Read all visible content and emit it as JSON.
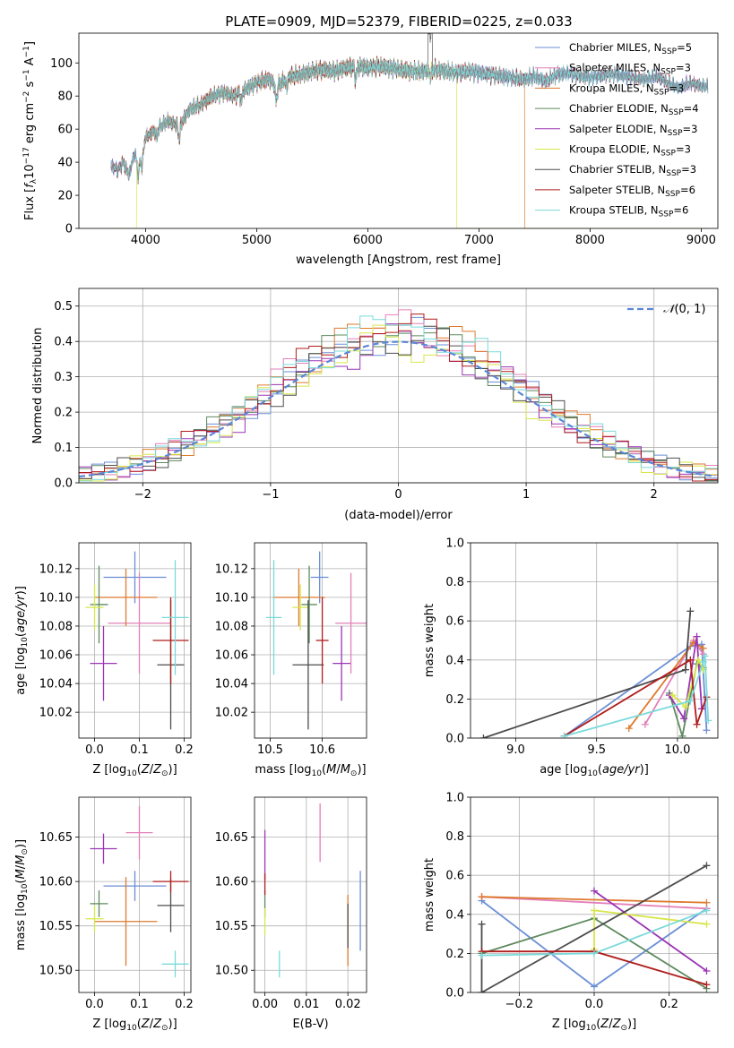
{
  "figure": {
    "title": "PLATE=0909, MJD=52379, FIBERID=0225, z=0.033"
  },
  "colors": {
    "Chabrier MILES": "#6b8fd6",
    "Salpeter MILES": "#e37fb8",
    "Kroupa MILES": "#de7a2e",
    "Chabrier ELODIE": "#5e8a5e",
    "Salpeter ELODIE": "#9a35b5",
    "Kroupa ELODIE": "#d7e64a",
    "Chabrier STELIB": "#4d4d4d",
    "Salpeter STELIB": "#b01c1c",
    "Kroupa STELIB": "#7adada"
  },
  "chart_data": [
    {
      "id": "spectrum",
      "type": "line",
      "xlabel": "wavelength [Angstrom, rest frame]",
      "ylabel": "Flux [f_λ10^-17 erg cm^-2 s^-1 A^-1]",
      "xlim": [
        3400,
        9150
      ],
      "ylim": [
        0,
        118
      ],
      "xticks": [
        4000,
        5000,
        6000,
        7000,
        8000,
        9000
      ],
      "yticks": [
        0,
        20,
        40,
        60,
        80,
        100
      ],
      "grid": false,
      "legend_position": "upper-right",
      "legend": [
        {
          "model": "Chabrier MILES",
          "label": "Chabrier MILES, N",
          "sub": "SSP",
          "suffix": "=5"
        },
        {
          "model": "Salpeter MILES",
          "label": "Salpeter MILES, N",
          "sub": "SSP",
          "suffix": "=3"
        },
        {
          "model": "Kroupa MILES",
          "label": "Kroupa MILES, N",
          "sub": "SSP",
          "suffix": "=3"
        },
        {
          "model": "Chabrier ELODIE",
          "label": "Chabrier ELODIE, N",
          "sub": "SSP",
          "suffix": "=4"
        },
        {
          "model": "Salpeter ELODIE",
          "label": "Salpeter ELODIE, N",
          "sub": "SSP",
          "suffix": "=3"
        },
        {
          "model": "Kroupa ELODIE",
          "label": "Kroupa ELODIE, N",
          "sub": "SSP",
          "suffix": "=3"
        },
        {
          "model": "Chabrier STELIB",
          "label": "Chabrier STELIB, N",
          "sub": "SSP",
          "suffix": "=3"
        },
        {
          "model": "Salpeter STELIB",
          "label": "Salpeter STELIB, N",
          "sub": "SSP",
          "suffix": "=6"
        },
        {
          "model": "Kroupa STELIB",
          "label": "Kroupa STELIB, N",
          "sub": "SSP",
          "suffix": "=6"
        }
      ],
      "spectrum_anchors": {
        "wavelength": [
          3690,
          3750,
          3800,
          3850,
          3900,
          3950,
          4000,
          4100,
          4200,
          4300,
          4400,
          4500,
          4600,
          4700,
          4800,
          4900,
          5000,
          5100,
          5200,
          5300,
          5400,
          5500,
          5600,
          5700,
          5800,
          5900,
          6000,
          6100,
          6200,
          6300,
          6400,
          6500,
          6600,
          6700,
          6800,
          6900,
          7000,
          7100,
          7200,
          7300,
          7400,
          7500,
          7600,
          7700,
          7800,
          7900,
          8000,
          8100,
          8200,
          8300,
          8400,
          8500,
          8600,
          8700,
          8800,
          8900,
          9000
        ],
        "flux": [
          38,
          35,
          40,
          32,
          45,
          44,
          55,
          60,
          65,
          62,
          72,
          75,
          80,
          82,
          80,
          84,
          88,
          90,
          87,
          92,
          93,
          95,
          96,
          95,
          97,
          98,
          97,
          98,
          97,
          96,
          95,
          95,
          96,
          95,
          94,
          95,
          94,
          93,
          92,
          91,
          90,
          92,
          89,
          93,
          94,
          92,
          91,
          92,
          93,
          92,
          91,
          90,
          92,
          88,
          85,
          88,
          86
        ]
      },
      "model_cutoffs": [
        {
          "model": "Kroupa ELODIE",
          "from": 3920,
          "to": 6800,
          "note": "drops to zero outside range"
        },
        {
          "model": "Kroupa MILES",
          "from": 3540,
          "to": 7410
        }
      ]
    },
    {
      "id": "residuals",
      "type": "step",
      "xlabel": "(data-model)/error",
      "ylabel": "Normed distribution",
      "xlim": [
        -2.5,
        2.5
      ],
      "ylim": [
        0,
        0.55
      ],
      "xticks": [
        -2,
        -1,
        0,
        1,
        2
      ],
      "yticks": [
        0.0,
        0.1,
        0.2,
        0.3,
        0.4,
        0.5
      ],
      "grid": true,
      "legend_position": "upper-right",
      "reference_curve": {
        "label": "N(0,1)",
        "mean": 0,
        "sigma": 1,
        "color": "#5b86d6"
      },
      "bin_width": 0.1
    },
    {
      "id": "age_vs_Z",
      "type": "errorbar",
      "xlabel": "Z [log10(Z/Z⊙)]",
      "ylabel": "age [log10(age/yr)]",
      "xlim": [
        -0.035,
        0.215
      ],
      "ylim": [
        10.002,
        10.138
      ],
      "xticks": [
        0.0,
        0.1,
        0.2
      ],
      "yticks": [
        10.02,
        10.04,
        10.06,
        10.08,
        10.1,
        10.12
      ],
      "grid": true,
      "points": [
        {
          "model": "Chabrier MILES",
          "x": 0.09,
          "xerr": 0.07,
          "y": 10.114,
          "yerr": 0.018
        },
        {
          "model": "Salpeter MILES",
          "x": 0.1,
          "xerr": 0.07,
          "y": 10.082,
          "yerr": 0.035
        },
        {
          "model": "Kroupa MILES",
          "x": 0.07,
          "xerr": 0.07,
          "y": 10.1,
          "yerr": 0.02
        },
        {
          "model": "Chabrier ELODIE",
          "x": 0.01,
          "xerr": 0.02,
          "y": 10.095,
          "yerr": 0.027
        },
        {
          "model": "Salpeter ELODIE",
          "x": 0.02,
          "xerr": 0.03,
          "y": 10.054,
          "yerr": 0.026
        },
        {
          "model": "Kroupa ELODIE",
          "x": 0.0,
          "xerr": 0.02,
          "y": 10.093,
          "yerr": 0.016
        },
        {
          "model": "Chabrier STELIB",
          "x": 0.17,
          "xerr": 0.03,
          "y": 10.053,
          "yerr": 0.045
        },
        {
          "model": "Salpeter STELIB",
          "x": 0.17,
          "xerr": 0.04,
          "y": 10.07,
          "yerr": 0.03
        },
        {
          "model": "Kroupa STELIB",
          "x": 0.18,
          "xerr": 0.03,
          "y": 10.086,
          "yerr": 0.04
        }
      ]
    },
    {
      "id": "age_vs_mass",
      "type": "errorbar",
      "xlabel": "mass [log10(M/M⊙)]",
      "ylabel": "",
      "xlim": [
        10.47,
        10.685
      ],
      "ylim": [
        10.002,
        10.138
      ],
      "xticks": [
        10.5,
        10.6
      ],
      "yticks": [
        10.02,
        10.04,
        10.06,
        10.08,
        10.1,
        10.12
      ],
      "grid": true,
      "points": [
        {
          "model": "Chabrier MILES",
          "x": 10.595,
          "xerr": 0.017,
          "y": 10.114,
          "yerr": 0.018
        },
        {
          "model": "Salpeter MILES",
          "x": 10.655,
          "xerr": 0.03,
          "y": 10.082,
          "yerr": 0.035
        },
        {
          "model": "Kroupa MILES",
          "x": 10.555,
          "xerr": 0.05,
          "y": 10.1,
          "yerr": 0.02
        },
        {
          "model": "Chabrier ELODIE",
          "x": 10.575,
          "xerr": 0.015,
          "y": 10.095,
          "yerr": 0.027
        },
        {
          "model": "Salpeter ELODIE",
          "x": 10.637,
          "xerr": 0.017,
          "y": 10.054,
          "yerr": 0.026
        },
        {
          "model": "Kroupa ELODIE",
          "x": 10.558,
          "xerr": 0.015,
          "y": 10.093,
          "yerr": 0.016
        },
        {
          "model": "Chabrier STELIB",
          "x": 10.573,
          "xerr": 0.03,
          "y": 10.053,
          "yerr": 0.045
        },
        {
          "model": "Salpeter STELIB",
          "x": 10.6,
          "xerr": 0.012,
          "y": 10.07,
          "yerr": 0.03
        },
        {
          "model": "Kroupa STELIB",
          "x": 10.507,
          "xerr": 0.015,
          "y": 10.086,
          "yerr": 0.04
        }
      ]
    },
    {
      "id": "massweight_vs_age",
      "type": "line",
      "xlabel": "age  [log10(age/yr)]",
      "ylabel": "mass weight",
      "xlim": [
        8.72,
        10.25
      ],
      "ylim": [
        0.0,
        1.0
      ],
      "xticks": [
        9.0,
        9.5,
        10.0
      ],
      "yticks": [
        0.0,
        0.2,
        0.4,
        0.6,
        0.8,
        1.0
      ],
      "grid": true,
      "series": [
        {
          "model": "Chabrier MILES",
          "x": [
            9.3,
            10.08,
            10.15,
            10.18
          ],
          "y": [
            0.01,
            0.47,
            0.48,
            0.04
          ]
        },
        {
          "model": "Salpeter MILES",
          "x": [
            9.8,
            10.1,
            10.16
          ],
          "y": [
            0.07,
            0.5,
            0.43
          ]
        },
        {
          "model": "Kroupa MILES",
          "x": [
            9.7,
            10.1,
            10.16
          ],
          "y": [
            0.05,
            0.49,
            0.46
          ]
        },
        {
          "model": "Chabrier ELODIE",
          "x": [
            9.95,
            10.03,
            10.12,
            10.16
          ],
          "y": [
            0.23,
            0.01,
            0.38,
            0.36
          ]
        },
        {
          "model": "Salpeter ELODIE",
          "x": [
            9.95,
            10.04,
            10.12,
            10.15
          ],
          "y": [
            0.22,
            0.1,
            0.52,
            0.15
          ]
        },
        {
          "model": "Kroupa ELODIE",
          "x": [
            9.97,
            10.05,
            10.13,
            10.16
          ],
          "y": [
            0.22,
            0.16,
            0.4,
            0.35
          ]
        },
        {
          "model": "Chabrier STELIB",
          "x": [
            8.8,
            10.05,
            10.08
          ],
          "y": [
            0.0,
            0.35,
            0.65
          ]
        },
        {
          "model": "Salpeter STELIB",
          "x": [
            9.3,
            10.08,
            10.12,
            10.18
          ],
          "y": [
            0.01,
            0.4,
            0.07,
            0.21
          ]
        },
        {
          "model": "Kroupa STELIB",
          "x": [
            9.3,
            10.08,
            10.16,
            10.17,
            10.19
          ],
          "y": [
            0.01,
            0.19,
            0.39,
            0.42,
            0.09
          ]
        }
      ]
    },
    {
      "id": "mass_vs_Z",
      "type": "errorbar",
      "xlabel": "Z [log10(Z/Z⊙)]",
      "ylabel": "mass [log10(M/M⊙)]",
      "xlim": [
        -0.035,
        0.215
      ],
      "ylim": [
        10.475,
        10.695
      ],
      "xticks": [
        0.0,
        0.1,
        0.2
      ],
      "yticks": [
        10.5,
        10.55,
        10.6,
        10.65
      ],
      "grid": true,
      "points": [
        {
          "model": "Chabrier MILES",
          "x": 0.09,
          "xerr": 0.07,
          "y": 10.595,
          "yerr": 0.017
        },
        {
          "model": "Salpeter MILES",
          "x": 0.1,
          "xerr": 0.03,
          "y": 10.655,
          "yerr": 0.03
        },
        {
          "model": "Kroupa MILES",
          "x": 0.07,
          "xerr": 0.07,
          "y": 10.555,
          "yerr": 0.05
        },
        {
          "model": "Chabrier ELODIE",
          "x": 0.01,
          "xerr": 0.02,
          "y": 10.575,
          "yerr": 0.015
        },
        {
          "model": "Salpeter ELODIE",
          "x": 0.02,
          "xerr": 0.03,
          "y": 10.637,
          "yerr": 0.017
        },
        {
          "model": "Kroupa ELODIE",
          "x": 0.0,
          "xerr": 0.02,
          "y": 10.558,
          "yerr": 0.015
        },
        {
          "model": "Chabrier STELIB",
          "x": 0.17,
          "xerr": 0.03,
          "y": 10.573,
          "yerr": 0.03
        },
        {
          "model": "Salpeter STELIB",
          "x": 0.17,
          "xerr": 0.04,
          "y": 10.6,
          "yerr": 0.012
        },
        {
          "model": "Kroupa STELIB",
          "x": 0.18,
          "xerr": 0.03,
          "y": 10.507,
          "yerr": 0.015
        }
      ]
    },
    {
      "id": "mass_vs_ebv",
      "type": "errorbar",
      "xlabel": "E(B-V)",
      "ylabel": "",
      "xlim": [
        -0.0025,
        0.0245
      ],
      "ylim": [
        10.475,
        10.695
      ],
      "xticks": [
        0.0,
        0.01,
        0.02
      ],
      "yticks": [
        10.5,
        10.55,
        10.6,
        10.65
      ],
      "grid": true,
      "points": [
        {
          "model": "Chabrier MILES",
          "x": 0.023,
          "y": 10.567,
          "yerr": 0.045
        },
        {
          "model": "Salpeter MILES",
          "x": 0.0133,
          "y": 10.655,
          "yerr": 0.033
        },
        {
          "model": "Kroupa MILES",
          "x": 0.02,
          "y": 10.545,
          "yerr": 0.04
        },
        {
          "model": "Chabrier ELODIE",
          "x": 0.0,
          "y": 10.575,
          "yerr": 0.015
        },
        {
          "model": "Salpeter ELODIE",
          "x": 0.0,
          "y": 10.63,
          "yerr": 0.028
        },
        {
          "model": "Kroupa ELODIE",
          "x": 0.0,
          "y": 10.555,
          "yerr": 0.015
        },
        {
          "model": "Chabrier STELIB",
          "x": 0.02,
          "y": 10.55,
          "yerr": 0.025
        },
        {
          "model": "Salpeter STELIB",
          "x": 0.0,
          "y": 10.597,
          "yerr": 0.012
        },
        {
          "model": "Kroupa STELIB",
          "x": 0.0035,
          "y": 10.507,
          "yerr": 0.015
        }
      ]
    },
    {
      "id": "massweight_vs_Z",
      "type": "line",
      "xlabel": "Z [log10(Z/Z⊙)]",
      "ylabel": "mass weight",
      "xlim": [
        -0.33,
        0.33
      ],
      "ylim": [
        0.0,
        1.0
      ],
      "xticks": [
        -0.2,
        0.0,
        0.2
      ],
      "yticks": [
        0.0,
        0.2,
        0.4,
        0.6,
        0.8,
        1.0
      ],
      "grid": true,
      "series": [
        {
          "model": "Chabrier MILES",
          "x": [
            -0.3,
            0.0,
            0.3
          ],
          "y": [
            0.47,
            0.03,
            0.43
          ]
        },
        {
          "model": "Salpeter MILES",
          "x": [
            -0.3,
            0.3
          ],
          "y": [
            0.49,
            0.43
          ]
        },
        {
          "model": "Kroupa MILES",
          "x": [
            -0.3,
            0.3
          ],
          "y": [
            0.49,
            0.46
          ]
        },
        {
          "model": "Chabrier ELODIE",
          "x": [
            -0.3,
            0.0,
            0.3
          ],
          "y": [
            0.2,
            0.38,
            0.02
          ]
        },
        {
          "model": "Salpeter ELODIE",
          "x": [
            0.0,
            0.3
          ],
          "y": [
            0.52,
            0.11
          ]
        },
        {
          "model": "Kroupa ELODIE",
          "x": [
            0.0,
            0.0,
            0.3
          ],
          "y": [
            0.22,
            0.42,
            0.35
          ]
        },
        {
          "model": "Chabrier STELIB",
          "x": [
            -0.3,
            -0.3,
            0.3
          ],
          "y": [
            0.35,
            0.0,
            0.65
          ]
        },
        {
          "model": "Salpeter STELIB",
          "x": [
            -0.3,
            0.0,
            0.3
          ],
          "y": [
            0.21,
            0.21,
            0.04
          ]
        },
        {
          "model": "Kroupa STELIB",
          "x": [
            -0.3,
            0.0,
            0.3
          ],
          "y": [
            0.19,
            0.2,
            0.42
          ]
        }
      ]
    }
  ]
}
